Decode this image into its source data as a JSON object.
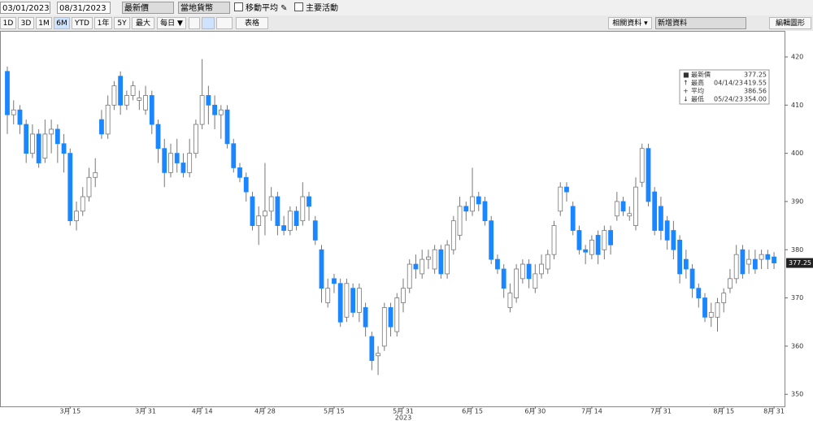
{
  "toolbar": {
    "start_date": "03/01/2023",
    "end_date": "08/31/2023",
    "field": "最新價",
    "currency": "當地貨幣",
    "moving_average": "移動平均",
    "events": "主要活動",
    "ranges": [
      "1D",
      "3D",
      "1M",
      "6M",
      "YTD",
      "1年",
      "5Y",
      "最大"
    ],
    "frequency": "每日 ▼",
    "table": "表格",
    "related": "相關資料 ▾",
    "add_data": "新增資料",
    "edit_chart": "編輯圖形"
  },
  "chart_data": {
    "type": "candlestick",
    "categories": [
      null,
      null,
      null,
      null,
      null,
      null,
      null,
      null,
      null,
      null,
      "3月 15",
      null,
      null,
      null,
      null,
      null,
      null,
      null,
      null,
      null,
      null,
      null,
      "3月 31",
      null,
      null,
      null,
      null,
      null,
      null,
      null,
      null,
      "4月 14",
      null,
      null,
      null,
      null,
      null,
      null,
      null,
      null,
      null,
      "4月 28",
      null,
      null,
      null,
      null,
      null,
      null,
      null,
      null,
      null,
      null,
      "5月 15",
      null,
      null,
      null,
      null,
      null,
      null,
      null,
      null,
      null,
      null,
      "5月 31",
      null,
      null,
      null,
      null,
      null,
      null,
      null,
      null,
      null,
      null,
      "6月 15",
      null,
      null,
      null,
      null,
      null,
      null,
      null,
      null,
      null,
      "6月 30",
      null,
      null,
      null,
      null,
      null,
      null,
      null,
      null,
      "7月 14",
      null,
      null,
      null,
      null,
      null,
      null,
      null,
      null,
      null,
      null,
      "7月 31",
      null,
      null,
      null,
      null,
      null,
      null,
      null,
      null,
      null,
      "8月 15",
      null,
      null,
      null,
      null,
      null,
      null,
      null,
      "8月 31"
    ],
    "year_label": "2023",
    "open": [
      417,
      408,
      409,
      406,
      400,
      404,
      399,
      404,
      405,
      402,
      400,
      386,
      388,
      391,
      395,
      407,
      404,
      410,
      416,
      410,
      412,
      411,
      409,
      412,
      406,
      401,
      396,
      400,
      398,
      396,
      400,
      406,
      412,
      410,
      408,
      409,
      402,
      397,
      395,
      391,
      385,
      387,
      388,
      391,
      385,
      384,
      388,
      386,
      391,
      386,
      380,
      369,
      374,
      373,
      366,
      372,
      367,
      368,
      362,
      358,
      360,
      368,
      363,
      369,
      372,
      377,
      375,
      378,
      376,
      380,
      375,
      380,
      383,
      389,
      388,
      391,
      390,
      386,
      378,
      376,
      368,
      370,
      374,
      377,
      372,
      375,
      376,
      379,
      388,
      393,
      389,
      384,
      380,
      379,
      383,
      380,
      384,
      387,
      390,
      387,
      385,
      394,
      401,
      392,
      389,
      386,
      384,
      382,
      378,
      376,
      372,
      370,
      366,
      366,
      369,
      372,
      374,
      380,
      377,
      378,
      378,
      379,
      378.5
    ],
    "high": [
      418,
      411,
      410,
      407,
      406,
      405,
      407,
      407,
      406,
      404,
      401,
      390,
      393,
      397,
      399,
      409,
      412,
      415,
      417,
      413,
      415,
      413,
      414,
      413,
      407,
      403,
      402,
      403,
      400,
      403,
      407,
      419.55,
      414,
      412,
      410,
      410,
      403,
      398,
      396,
      392,
      389,
      398,
      393,
      392,
      387,
      389,
      389,
      394,
      392,
      387,
      381,
      374,
      375,
      374,
      374,
      373,
      373,
      369,
      363,
      360,
      369,
      369,
      371,
      374,
      378,
      379,
      380,
      380,
      381,
      381,
      382,
      387,
      391,
      390,
      397,
      392,
      391,
      387,
      379,
      377,
      373,
      377,
      378,
      378,
      377,
      379,
      380,
      386,
      394,
      394,
      390,
      385,
      381,
      383,
      384,
      385,
      385,
      392,
      391,
      389,
      395,
      402,
      402,
      393,
      391,
      387,
      386,
      383,
      380,
      377,
      373,
      371,
      369,
      370,
      372,
      376,
      381,
      381,
      380,
      380,
      380,
      380,
      379.5
    ],
    "low": [
      404,
      406,
      404,
      398,
      399,
      397,
      398,
      400,
      398,
      396,
      385,
      384,
      387,
      390,
      393,
      403,
      403,
      409,
      408,
      409,
      411,
      409,
      408,
      404,
      398,
      393,
      395,
      396,
      395,
      395,
      399,
      405,
      406,
      405,
      403,
      401,
      396,
      394,
      390,
      384,
      381,
      383,
      386,
      383,
      383,
      383,
      384,
      385,
      386,
      381,
      369,
      368,
      371,
      364,
      365,
      366,
      365,
      362,
      355,
      354,
      359,
      362,
      362,
      367,
      371,
      374,
      374,
      376,
      375,
      374,
      374,
      379,
      382,
      386,
      387,
      388,
      385,
      377,
      375,
      370,
      367,
      369,
      373,
      372,
      371,
      374,
      375,
      378,
      387,
      390,
      383,
      379,
      377,
      378,
      377,
      378,
      379,
      386,
      387,
      386,
      384,
      393,
      389,
      383,
      382,
      380,
      378,
      373,
      374,
      370,
      368,
      365,
      364,
      363,
      367,
      371,
      373,
      374,
      375,
      375,
      376,
      376,
      376
    ],
    "close": [
      408,
      409,
      406,
      400,
      404,
      398,
      404,
      405,
      402,
      400,
      386,
      388,
      391,
      395,
      396,
      404,
      410,
      414,
      410,
      412,
      414,
      411.5,
      412,
      406,
      401,
      396,
      400,
      398,
      396,
      400,
      406,
      412,
      410,
      408,
      409,
      402,
      397,
      395,
      392,
      385,
      387,
      388,
      391,
      385,
      384,
      388,
      385,
      391,
      389,
      382,
      372,
      372,
      373,
      365,
      373,
      367,
      372,
      364,
      357,
      358.5,
      368,
      364,
      370,
      372,
      377,
      376,
      378,
      378.5,
      380,
      375,
      381,
      386,
      389,
      388,
      391,
      389.5,
      386,
      378,
      376,
      372,
      371,
      376,
      377,
      374,
      375,
      377,
      379,
      385,
      393,
      392,
      384,
      380,
      379.5,
      382,
      379,
      384,
      381,
      390,
      388,
      387.5,
      393,
      401,
      390,
      384,
      384,
      382,
      380,
      375,
      376,
      372,
      370,
      366,
      367,
      369,
      371,
      374,
      379,
      375,
      378,
      376,
      379,
      378,
      377.25
    ],
    "up_color": "#ffffff",
    "down_color": "#1a86ff",
    "ylim": [
      347.5,
      425.4
    ],
    "yticks": [
      350,
      360,
      370,
      380,
      390,
      400,
      410,
      420
    ],
    "last_price": 377.25,
    "stats": [
      {
        "name": "最新價",
        "value": 377.25
      },
      {
        "name": "最高",
        "date": "04/14/23",
        "value": 419.55
      },
      {
        "name": "平均",
        "value": 386.56
      },
      {
        "name": "最低",
        "date": "05/24/23",
        "value": 354,
        "value_label": "354.00"
      }
    ]
  }
}
